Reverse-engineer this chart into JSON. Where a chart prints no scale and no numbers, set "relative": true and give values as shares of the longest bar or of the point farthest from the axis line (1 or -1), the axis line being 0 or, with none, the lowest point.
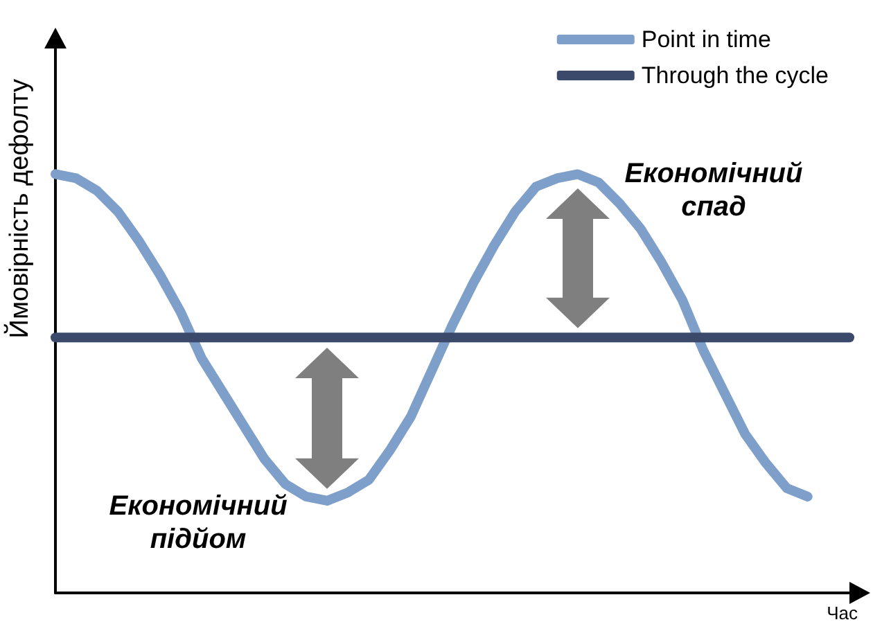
{
  "chart_data": {
    "type": "line",
    "relative": true,
    "xlabel": "Час",
    "ylabel": "Ймовірність дефолту",
    "categories": [
      null,
      null,
      null,
      null,
      null,
      null,
      null,
      null,
      null,
      null,
      null,
      null,
      null,
      null,
      null,
      null,
      null,
      null,
      null,
      null,
      null,
      null,
      null,
      null,
      null,
      null,
      null,
      null,
      null,
      null,
      null,
      null,
      null,
      null,
      null,
      null,
      null,
      null,
      null
    ],
    "series": [
      {
        "name": "Point in time",
        "color": "#7f9fcb",
        "values": [
          1,
          0.99,
          0.96,
          0.91,
          0.84,
          0.76,
          0.67,
          0.56,
          0.48,
          0.4,
          0.32,
          0.26,
          0.23,
          0.22,
          0.24,
          0.27,
          0.34,
          0.42,
          0.53,
          0.64,
          0.74,
          0.83,
          0.91,
          0.97,
          0.99,
          1,
          0.98,
          0.93,
          0.87,
          0.79,
          0.7,
          0.58,
          0.48,
          0.38,
          0.31,
          0.25,
          0.23,
          null,
          null
        ]
      },
      {
        "name": "Through the cycle",
        "color": "#3b4a6b",
        "values": [
          0.61,
          0.61,
          0.61,
          0.61,
          0.61,
          0.61,
          0.61,
          0.61,
          0.61,
          0.61,
          0.61,
          0.61,
          0.61,
          0.61,
          0.61,
          0.61,
          0.61,
          0.61,
          0.61,
          0.61,
          0.61,
          0.61,
          0.61,
          0.61,
          0.61,
          0.61,
          0.61,
          0.61,
          0.61,
          0.61,
          0.61,
          0.61,
          0.61,
          0.61,
          0.61,
          0.61,
          0.61,
          0.61,
          0.61
        ]
      }
    ],
    "legend": "top right",
    "grid": false,
    "marker": "none",
    "line_style": "solid",
    "annotations": [
      "Економічний спад",
      "Економічний підйом"
    ]
  }
}
